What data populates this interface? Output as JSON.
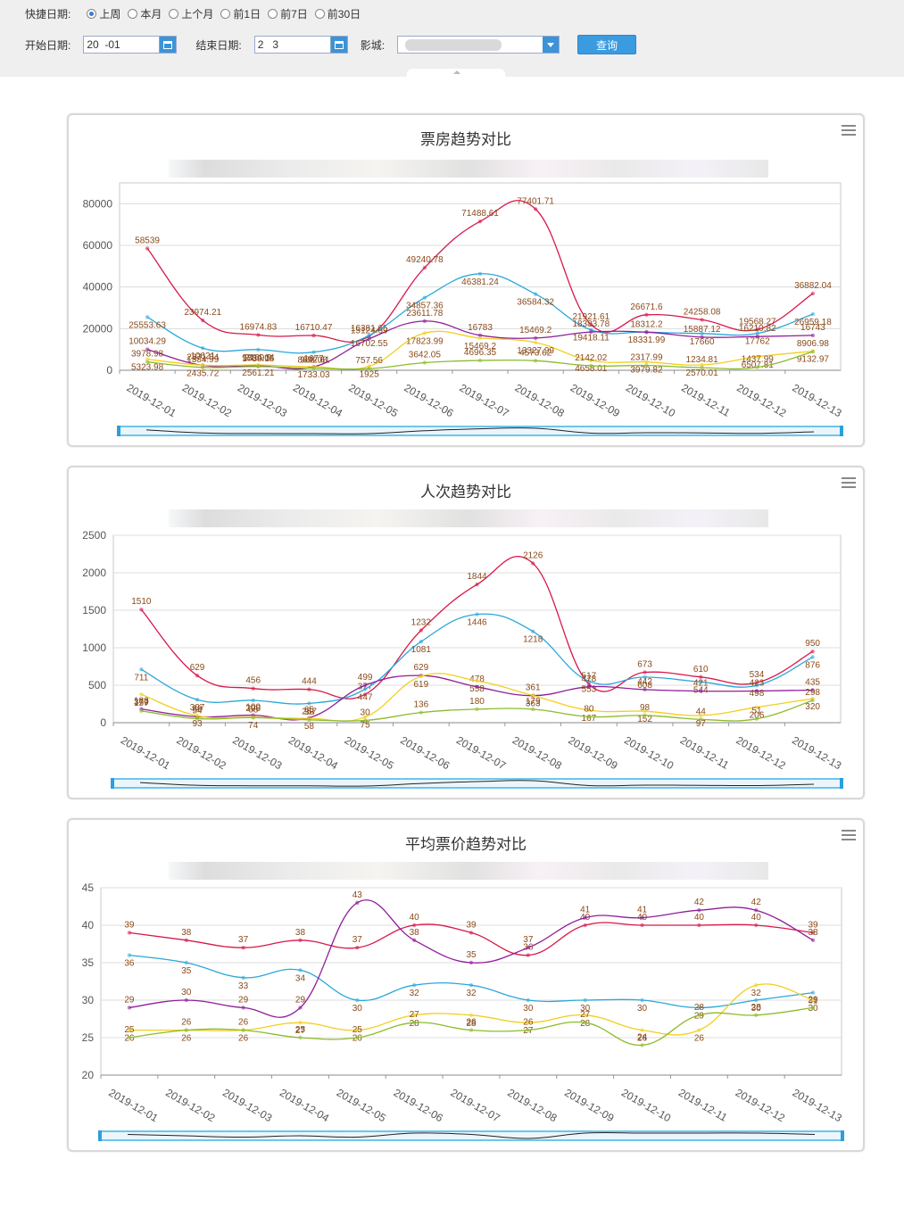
{
  "filters": {
    "quick_label": "快捷日期:",
    "quick_options": [
      "上周",
      "本月",
      "上个月",
      "前1日",
      "前7日",
      "前30日"
    ],
    "quick_selected": "上周",
    "start_label": "开始日期:",
    "start_value": "20  -01",
    "end_label": "结束日期:",
    "end_value": "2   3",
    "cinema_label": "影城:",
    "query_button": "查询"
  },
  "charts": [
    {
      "title": "票房趋势对比"
    },
    {
      "title": "人次趋势对比"
    },
    {
      "title": "平均票价趋势对比"
    }
  ],
  "chart_data": [
    {
      "type": "line",
      "title": "票房趋势对比",
      "x": [
        "2019-12-01",
        "2019-12-02",
        "2019-12-03",
        "2019-12-04",
        "2019-12-05",
        "2019-12-06",
        "2019-12-07",
        "2019-12-08",
        "2019-12-09",
        "2019-12-10",
        "2019-12-11",
        "2019-12-12",
        "2019-12-13"
      ],
      "ylim": [
        0,
        90000
      ],
      "yticks": [
        0,
        20000,
        40000,
        60000,
        80000
      ],
      "series": [
        {
          "color": "#d8184a",
          "values": [
            58539,
            23974.21,
            16974.83,
            16710.47,
            16381.65,
            49240.78,
            71488.61,
            77401.71,
            21921.61,
            26671.6,
            24258.08,
            19568.27,
            36882.04
          ]
        },
        {
          "color": "#29a8d9",
          "values": [
            25553.63,
            10621,
            9884.04,
            8692.61,
            16702.55,
            34857.36,
            46381.24,
            36584.32,
            19418.11,
            18331.99,
            17660,
            17762,
            26959.18
          ]
        },
        {
          "color": "#8e1e99",
          "values": [
            10034.29,
            2371.04,
            2169.9,
            1677,
            15124.69,
            23611.78,
            16783,
            15469.2,
            18383.78,
            18312.2,
            15887.12,
            16210.82,
            16743
          ]
        },
        {
          "color": "#f2cf1d",
          "values": [
            5323.98,
            2435.72,
            2561.21,
            1733.03,
            1925,
            17823.99,
            15469.2,
            13327.99,
            4658.01,
            3979.82,
            2570.01,
            6507.81,
            9132.97
          ]
        },
        {
          "color": "#8dbb2c",
          "values": [
            3978.98,
            1384.99,
            1739.15,
            968.08,
            757.56,
            3642.05,
            4696.35,
            4573.62,
            2142.02,
            2317.99,
            1234.81,
            1437.99,
            8906.98
          ]
        }
      ]
    },
    {
      "type": "line",
      "title": "人次趋势对比",
      "x": [
        "2019-12-01",
        "2019-12-02",
        "2019-12-03",
        "2019-12-04",
        "2019-12-05",
        "2019-12-06",
        "2019-12-07",
        "2019-12-08",
        "2019-12-09",
        "2019-12-10",
        "2019-12-11",
        "2019-12-12",
        "2019-12-13"
      ],
      "ylim": [
        0,
        2500
      ],
      "yticks": [
        0,
        500,
        1000,
        1500,
        2000,
        2500
      ],
      "series": [
        {
          "color": "#d8184a",
          "values": [
            1510,
            629,
            456,
            444,
            377,
            1232,
            1844,
            2126,
            517,
            673,
            610,
            534,
            950
          ]
        },
        {
          "color": "#29a8d9",
          "values": [
            711,
            307,
            298,
            257,
            447,
            1081,
            1446,
            1218,
            553,
            608,
            544,
            498,
            876
          ]
        },
        {
          "color": "#8e1e99",
          "values": [
            183,
            80,
            100,
            65,
            499,
            629,
            478,
            361,
            478,
            442,
            421,
            423,
            435
          ]
        },
        {
          "color": "#f2cf1d",
          "values": [
            379,
            93,
            74,
            58,
            75,
            619,
            558,
            363,
            167,
            152,
            97,
            206,
            320
          ]
        },
        {
          "color": "#8dbb2c",
          "values": [
            157,
            54,
            68,
            38,
            30,
            136,
            180,
            179,
            80,
            98,
            44,
            51,
            298
          ]
        }
      ]
    },
    {
      "type": "line",
      "title": "平均票价趋势对比",
      "x": [
        "2019-12-01",
        "2019-12-02",
        "2019-12-03",
        "2019-12-04",
        "2019-12-05",
        "2019-12-06",
        "2019-12-07",
        "2019-12-08",
        "2019-12-09",
        "2019-12-10",
        "2019-12-11",
        "2019-12-12",
        "2019-12-13"
      ],
      "ylim": [
        20,
        45
      ],
      "yticks": [
        20,
        25,
        30,
        35,
        40,
        45
      ],
      "series": [
        {
          "color": "#d8184a",
          "values": [
            39,
            38,
            37,
            38,
            37,
            40,
            39,
            36,
            40,
            40,
            40,
            40,
            39
          ]
        },
        {
          "color": "#29a8d9",
          "values": [
            36,
            35,
            33,
            34,
            30,
            32,
            32,
            30,
            30,
            30,
            29,
            30,
            31
          ]
        },
        {
          "color": "#8e1e99",
          "values": [
            29,
            30,
            29,
            29,
            43,
            38,
            35,
            37,
            41,
            41,
            42,
            42,
            38
          ]
        },
        {
          "color": "#f2cf1d",
          "values": [
            26,
            26,
            26,
            27,
            26,
            28,
            28,
            27,
            28,
            26,
            26,
            32,
            30
          ]
        },
        {
          "color": "#8dbb2c",
          "values": [
            25,
            26,
            26,
            25,
            25,
            27,
            26,
            26,
            27,
            24,
            28,
            28,
            29
          ]
        }
      ]
    }
  ]
}
